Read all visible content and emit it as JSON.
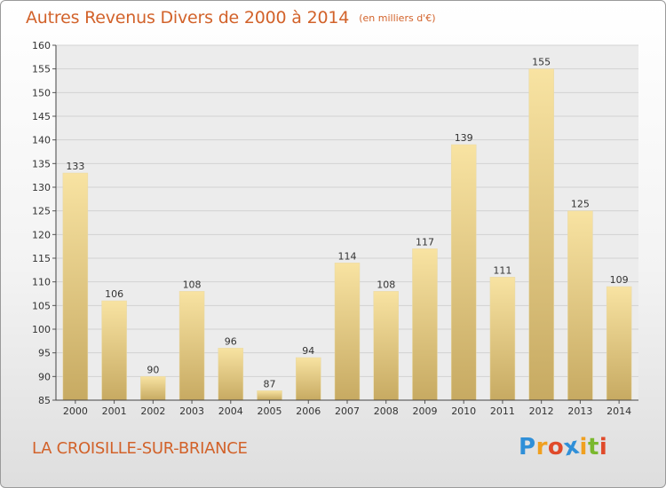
{
  "chart_data": {
    "type": "bar",
    "title": "Autres Revenus Divers de 2000 à 2014",
    "subtitle": "(en milliers d'€)",
    "categories": [
      "2000",
      "2001",
      "2002",
      "2003",
      "2004",
      "2005",
      "2006",
      "2007",
      "2008",
      "2009",
      "2010",
      "2011",
      "2012",
      "2013",
      "2014"
    ],
    "values": [
      133,
      106,
      90,
      108,
      96,
      87,
      94,
      114,
      108,
      117,
      139,
      111,
      155,
      125,
      109
    ],
    "ylim": [
      85,
      160
    ],
    "yticks": [
      85,
      90,
      95,
      100,
      105,
      110,
      115,
      120,
      125,
      130,
      135,
      140,
      145,
      150,
      155,
      160
    ],
    "grid": true,
    "colors": {
      "bar_light": "#f8e3a2",
      "bar_dark": "#c7aa62",
      "text_accent": "#d2622a"
    }
  },
  "footer": {
    "city": "LA CROISILLE-SUR-BRIANCE"
  },
  "logo": {
    "letters": [
      "P",
      "r",
      "o",
      "x",
      "i",
      "t",
      "i"
    ],
    "colors": [
      "#2f8fd8",
      "#f0a020",
      "#e04a2a",
      "#2f8fd8",
      "#f0a020",
      "#7ab82e",
      "#e04a2a"
    ]
  }
}
